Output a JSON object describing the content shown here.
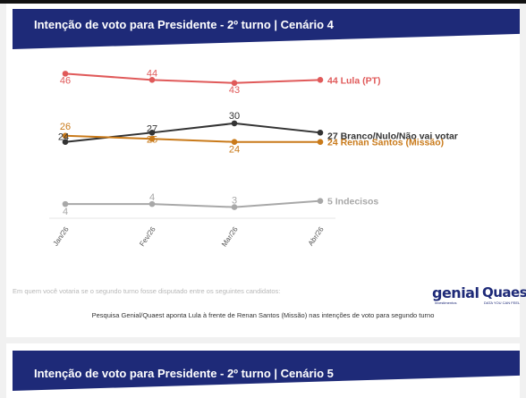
{
  "panel1": {
    "title": "Intenção de voto para Presidente - 2º turno | Cenário 4",
    "question": "Em quem você votaria se o segundo turno fosse disputado entre os seguintes candidatos:",
    "caption": "Pesquisa Genial/Quaest aponta Lula à frente de Renan Santos (Missão) nas intenções de voto para segundo turno",
    "logos": {
      "genial": "genial",
      "genial_sub": "investimentos",
      "quaest": "Quaest",
      "quaest_sub": "DATA YOU CAN FEEL"
    }
  },
  "panel2": {
    "title": "Intenção de voto para Presidente - 2º turno | Cenário 5"
  },
  "chart_data": {
    "type": "line",
    "categories": [
      "Jan/26",
      "Fev/26",
      "Mar/26",
      "Abr/26"
    ],
    "ylim": [
      0,
      50
    ],
    "grid": false,
    "series": [
      {
        "name": "Lula (PT)",
        "values": [
          46,
          44,
          43,
          44
        ],
        "color": "#e05a5a",
        "end_label": "44 Lula (PT)",
        "point_labels": [
          "46",
          "44",
          "43",
          ""
        ]
      },
      {
        "name": "Branco/Nulo/Não vai votar",
        "values": [
          24,
          27,
          30,
          27
        ],
        "color": "#333333",
        "end_label": "27 Branco/Nulo/Não vai votar",
        "point_labels": [
          "24",
          "27",
          "30",
          ""
        ]
      },
      {
        "name": "Renan Santos (Missão)",
        "values": [
          26,
          25,
          24,
          24
        ],
        "color": "#c97a1a",
        "end_label": "24 Renan Santos (Missão)",
        "point_labels": [
          "26",
          "25",
          "24",
          ""
        ]
      },
      {
        "name": "Indecisos",
        "values": [
          4,
          4,
          3,
          5
        ],
        "color": "#a8a8a8",
        "end_label": "5 Indecisos",
        "point_labels": [
          "4",
          "4",
          "3",
          ""
        ]
      }
    ]
  }
}
